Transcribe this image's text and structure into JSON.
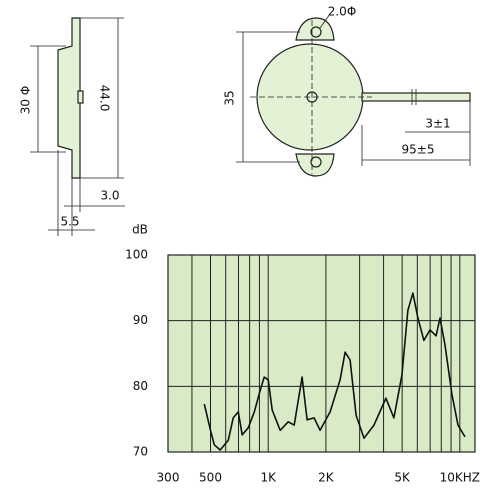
{
  "drawing": {
    "side_view": {
      "diameter": "30 Φ",
      "height": "44.0",
      "thickness": "3.0",
      "width": "5.5"
    },
    "top_view": {
      "hole": "2.0Φ",
      "diameter": "35",
      "lead_strip": "3±1",
      "lead_length": "95±5"
    }
  },
  "chart_data": {
    "type": "line",
    "y_label": "dB",
    "x_scale": "log",
    "color": "#111111",
    "background": "#d8ebc6",
    "x": [
      464,
      500,
      523,
      562,
      619,
      657,
      698,
      732,
      787,
      846,
      908,
      953,
      1000,
      1049,
      1155,
      1271,
      1366,
      1503,
      1596,
      1736,
      1866,
      2103,
      2372,
      2518,
      2675,
      2876,
      3162,
      3565,
      4115,
      4529,
      4984,
      5358,
      5691,
      6040,
      6496,
      6987,
      7516,
      7876,
      8366,
      9100,
      9788,
      10646
    ],
    "values": [
      77.3,
      73.3,
      71.1,
      70.3,
      71.8,
      75.2,
      76.1,
      72.6,
      73.7,
      76.1,
      79.4,
      81.4,
      81.0,
      76.4,
      73.3,
      74.6,
      74.1,
      81.4,
      74.9,
      75.2,
      73.3,
      76.1,
      81.0,
      85.2,
      84.0,
      75.6,
      72.1,
      74.1,
      78.2,
      75.2,
      81.7,
      91.6,
      94.2,
      90.4,
      87.0,
      88.6,
      87.7,
      90.4,
      86.3,
      78.7,
      74.1,
      72.3
    ],
    "xlim": [
      300,
      12000
    ],
    "xticks": [
      300,
      500,
      {
        "value": 1000,
        "label": "1K"
      },
      {
        "value": 2000,
        "label": "2K"
      },
      {
        "value": 5000,
        "label": "5K"
      },
      {
        "value": 10000,
        "label": "10KHZ"
      }
    ],
    "xgrid": [
      400,
      600,
      700,
      800,
      900,
      3000,
      4000,
      6000,
      7000,
      8000,
      9000
    ],
    "ylim": [
      70,
      100
    ],
    "yticks": [
      70,
      80,
      90,
      100
    ],
    "grid": true
  }
}
